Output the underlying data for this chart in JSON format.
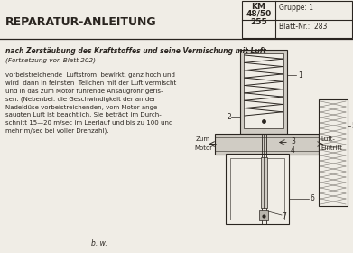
{
  "title": "REPARATUR-ANLEITUNG",
  "header_km": "KM\n48/50\n255",
  "header_gruppe": "Gruppe: 1",
  "header_blatt": "Blatt-Nr.:  283",
  "subtitle": "nach Zerstäubung des Kraftstoffes und seine Vermischung mit Luft",
  "subtitle2": "(Fortsetzung von Blatt 202)",
  "body_text": "vorbeistreichende  Luftstrom  bewirkt, ganz hoch und\nwird  dann in feinsten  Teilchen mit der Luft vermischt\nund in das zum Motor führende Ansaugrohr geris-\nsen. (Nebenbei: die Geschwindigkeit der an der\nNadeldüse vorbeistreichenden, vom Motor ange-\nsaugten Luft ist beachtlich. Sie beträgt im Durch-\nschnitt 15—20 m/sec im Leerlauf und bis zu 100 und\nmehr m/sec bei voller Drehzahl).",
  "footer_text": "b. w.",
  "label_zum": "Zum",
  "label_motor": "Motor",
  "label_luft": "Luft-",
  "label_eintritt": "Eintritt",
  "bg_color": "#f0ede6",
  "line_color": "#2a2520",
  "text_color": "#2a2520",
  "gray_fill": "#b8b4ac",
  "light_gray": "#d0ccc4"
}
